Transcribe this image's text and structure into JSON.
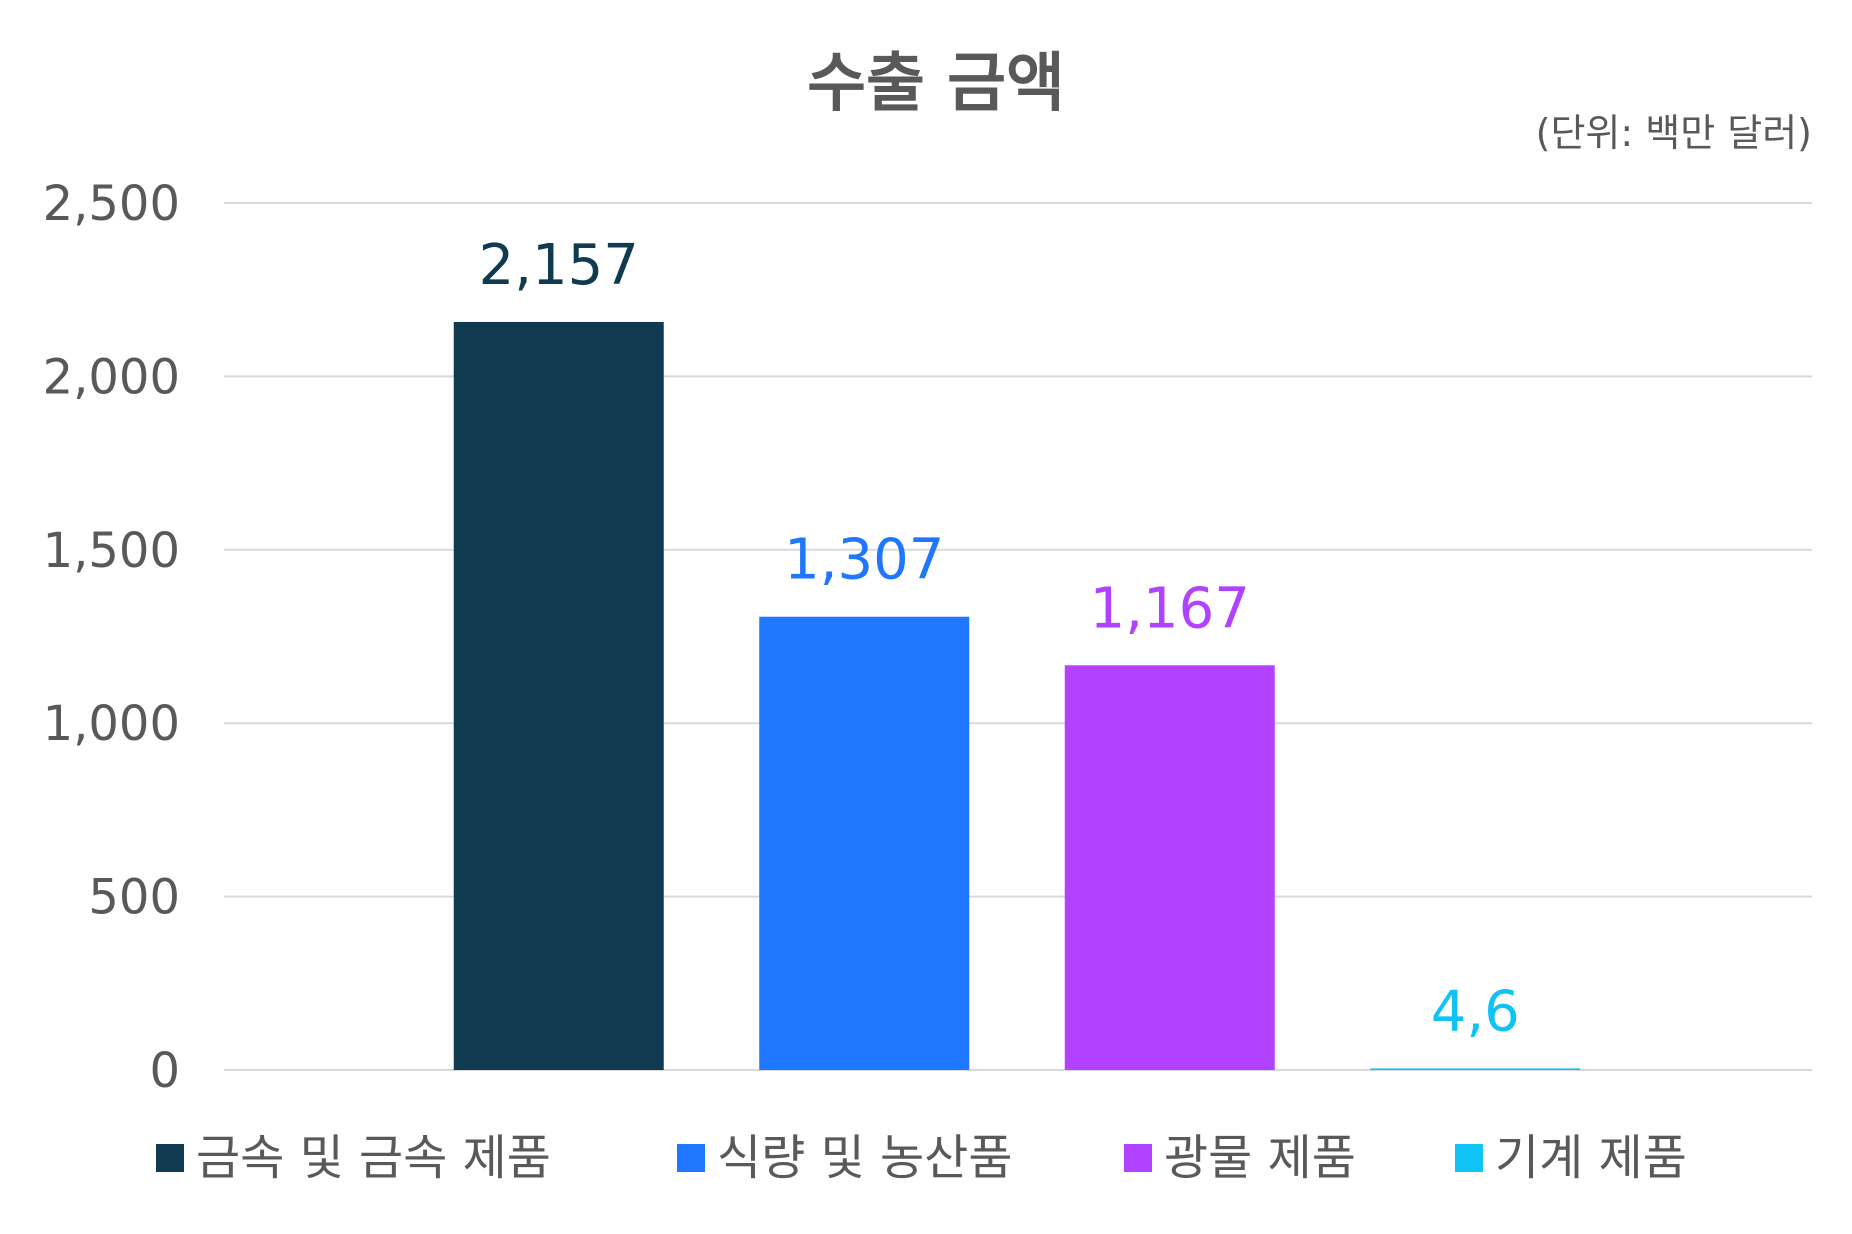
{
  "chart_data": {
    "type": "bar",
    "title": "수출 금액",
    "unit_label": "(단위: 백만 달러)",
    "categories": [
      "금속 및 금속 제품",
      "식량 및 농산품",
      "광물 제품",
      "기계 제품"
    ],
    "values": [
      2157,
      1307,
      1167,
      4.6
    ],
    "data_labels": [
      "2,157",
      "1,307",
      "1,167",
      "4,6"
    ],
    "colors": [
      "#0f3a4f",
      "#1f77ff",
      "#b142ff",
      "#0fc3f7"
    ],
    "ylim": [
      0,
      2500
    ],
    "yticks": [
      0,
      500,
      1000,
      1500,
      2000,
      2500
    ],
    "ytick_labels": [
      "0",
      "500",
      "1,000",
      "1,500",
      "2,000",
      "2,500"
    ],
    "grid": true,
    "legend_position": "bottom",
    "xlabel": "",
    "ylabel": ""
  }
}
